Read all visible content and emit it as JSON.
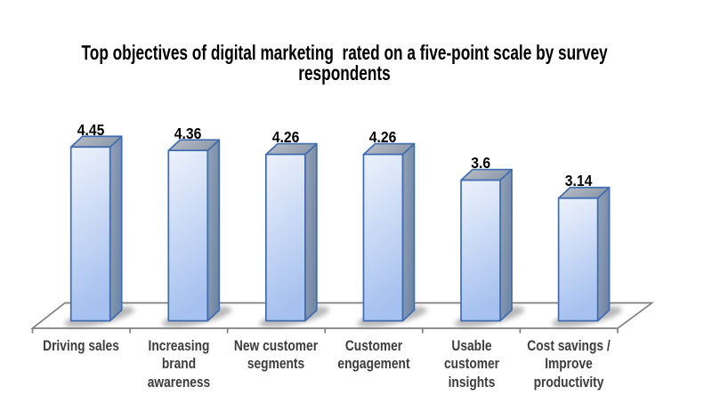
{
  "chart_data": {
    "type": "bar",
    "style": "3d-column",
    "title": "Top objectives of digital marketing  rated on a five-point scale by survey respondents",
    "title_lines": [
      "Top objectives of digital marketing  rated on a five-point scale by survey",
      "respondents"
    ],
    "categories": [
      "Driving sales",
      "Increasing brand awareness",
      "New customer segments",
      "Customer engagement",
      "Usable customer insights",
      "Cost savings / Improve productivity"
    ],
    "category_lines": [
      [
        "Driving sales"
      ],
      [
        "Increasing",
        "brand",
        "awareness"
      ],
      [
        "New customer",
        "segments"
      ],
      [
        "Customer",
        "engagement"
      ],
      [
        "Usable",
        "customer",
        "insights"
      ],
      [
        "Cost savings /",
        "Improve",
        "productivity"
      ]
    ],
    "values": [
      4.45,
      4.36,
      4.26,
      4.26,
      3.6,
      3.14
    ],
    "value_labels": [
      "4.45",
      "4.36",
      "4.26",
      "4.26",
      "3.6",
      "3.14"
    ],
    "xlabel": "",
    "ylabel": "",
    "scale": "five-point scale",
    "ylim": [
      0,
      5
    ],
    "grid": false,
    "legend": false,
    "background": "#ffffff",
    "colors": {
      "bar_front_top": "#edf2fb",
      "bar_front_bottom": "#a6c1ef",
      "bar_side_light": "#94a3b8",
      "bar_side_dark": "#7187a8",
      "bar_top_light": "#bac0ca",
      "bar_top_dark": "#8f99a9",
      "bar_border": "#3f6cb1",
      "floor_line": "#7f7f7f",
      "floor_fill": "#ffffff",
      "shadow": "#8c8c8c",
      "title_color": "#000000",
      "value_label_color": "#000000",
      "category_label_color": "#3d3d3d"
    }
  }
}
